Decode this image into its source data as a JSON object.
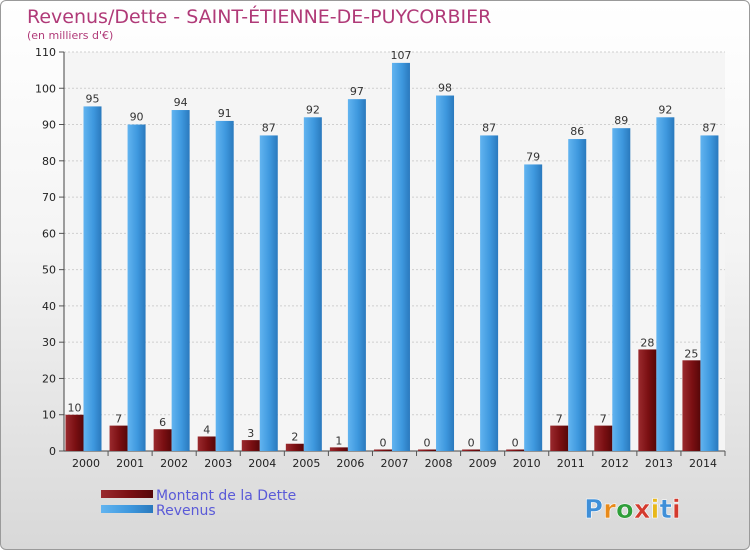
{
  "chart_data": {
    "type": "bar",
    "title": "Revenus/Dette - SAINT-ÉTIENNE-DE-PUYCORBIER",
    "subtitle": "(en milliers d'€)",
    "categories": [
      "2000",
      "2001",
      "2002",
      "2003",
      "2004",
      "2005",
      "2006",
      "2007",
      "2008",
      "2009",
      "2010",
      "2011",
      "2012",
      "2013",
      "2014"
    ],
    "series": [
      {
        "name": "Montant de la Dette",
        "color": "#7a0f12",
        "values": [
          10,
          7,
          6,
          4,
          3,
          2,
          1,
          0,
          0,
          0,
          0,
          7,
          7,
          28,
          25
        ]
      },
      {
        "name": "Revenus",
        "color": "#3e98de",
        "values": [
          95,
          90,
          94,
          91,
          87,
          92,
          97,
          107,
          98,
          87,
          79,
          86,
          89,
          92,
          87
        ]
      }
    ],
    "ylim": [
      0,
      110
    ],
    "yticks": [
      0,
      10,
      20,
      30,
      40,
      50,
      60,
      70,
      80,
      90,
      100,
      110
    ],
    "grid": true,
    "legend": "bottom-left"
  },
  "logo": {
    "text": "Proxiti"
  }
}
